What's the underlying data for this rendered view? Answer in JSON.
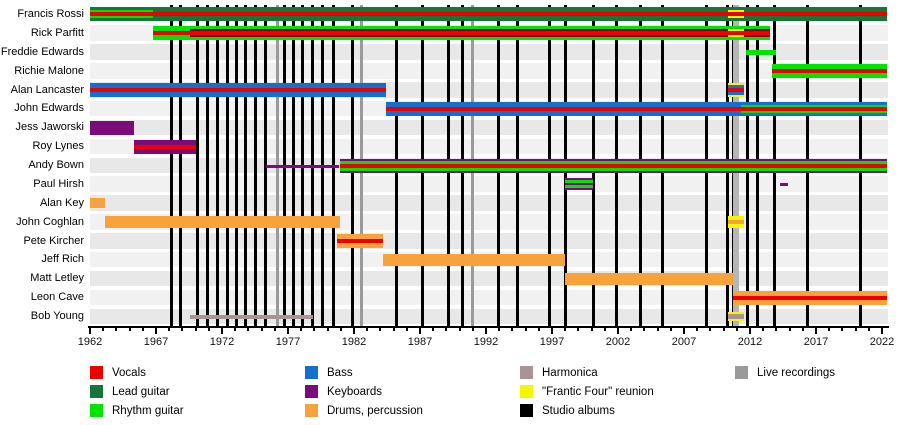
{
  "chart_data": {
    "type": "timeline",
    "description": "Band members timeline with roles by colour, studio albums and live recordings as vertical lines",
    "axis": {
      "start_year": 1962,
      "end_year": 2022.4,
      "tick_step": 1,
      "major_tick_step": 5,
      "tick_labels": [
        "1962",
        "1967",
        "1972",
        "1977",
        "1982",
        "1987",
        "1992",
        "1997",
        "2002",
        "2007",
        "2012",
        "2017",
        "2022"
      ],
      "grid": false
    },
    "legend": [
      {
        "id": "vocals",
        "label": "Vocals",
        "color": "red",
        "col": 0,
        "row": 0
      },
      {
        "id": "lead-guitar",
        "label": "Lead guitar",
        "color": "leadGuitar",
        "col": 0,
        "row": 1
      },
      {
        "id": "rhythm-guitar",
        "label": "Rhythm guitar",
        "color": "rhythmGuitar",
        "col": 0,
        "row": 2
      },
      {
        "id": "bass",
        "label": "Bass",
        "color": "bass",
        "col": 1,
        "row": 0
      },
      {
        "id": "keyboards",
        "label": "Keyboards",
        "color": "keyboards",
        "col": 1,
        "row": 1
      },
      {
        "id": "drums",
        "label": "Drums, percussion",
        "color": "drums",
        "col": 1,
        "row": 2
      },
      {
        "id": "harmonica",
        "label": "Harmonica",
        "color": "harmonica",
        "col": 2,
        "row": 0
      },
      {
        "id": "frantic-four",
        "label": "\"Frantic Four\" reunion",
        "color": "frantic",
        "col": 2,
        "row": 1
      },
      {
        "id": "studio-albums",
        "label": "Studio albums",
        "color": "studio",
        "col": 2,
        "row": 2
      },
      {
        "id": "live-recordings",
        "label": "Live recordings",
        "color": "live",
        "col": 3,
        "row": 0
      }
    ],
    "members": [
      {
        "name": "Francis Rossi",
        "bars": [
          {
            "s": 1962.0,
            "e": 1966.8,
            "st": [
              [
                "leadGuitar",
                3
              ],
              [
                "rhythmGuitar",
                2
              ],
              [
                "red",
                4
              ],
              [
                "rhythmGuitar",
                2
              ],
              [
                "leadGuitar",
                3
              ]
            ]
          },
          {
            "s": 1966.8,
            "e": 2022.35,
            "st": [
              [
                "leadGuitar",
                5
              ],
              [
                "red",
                4
              ],
              [
                "leadGuitar",
                5
              ]
            ]
          },
          {
            "s": 2010.35,
            "e": 2011.55,
            "st": [
              [
                "none",
                3
              ],
              [
                "frantic",
                2
              ],
              [
                "none",
                4
              ],
              [
                "frantic",
                2
              ],
              [
                "none",
                3
              ]
            ]
          }
        ]
      },
      {
        "name": "Rick Parfitt",
        "bars": [
          {
            "s": 1966.8,
            "e": 2013.55,
            "st": [
              [
                "rhythmGuitar",
                5
              ],
              [
                "red",
                4
              ],
              [
                "rhythmGuitar",
                5
              ]
            ]
          },
          {
            "s": 1969.6,
            "e": 2013.55,
            "st": [
              [
                "none",
                3
              ],
              [
                "darkRed",
                2
              ],
              [
                "none",
                4
              ],
              [
                "darkRed",
                2
              ],
              [
                "none",
                3
              ]
            ]
          },
          {
            "s": 2010.35,
            "e": 2011.55,
            "st": [
              [
                "none",
                3
              ],
              [
                "frantic",
                2
              ],
              [
                "none",
                4
              ],
              [
                "frantic",
                2
              ],
              [
                "none",
                3
              ]
            ]
          }
        ]
      },
      {
        "name": "Freddie Edwards",
        "bars": [
          {
            "s": 2011.7,
            "e": 2014.0,
            "st": [
              [
                "none",
                5
              ],
              [
                "rhythmGuitar",
                5
              ],
              [
                "none",
                4
              ]
            ]
          }
        ]
      },
      {
        "name": "Richie Malone",
        "bars": [
          {
            "s": 2013.7,
            "e": 2022.35,
            "st": [
              [
                "rhythmGuitar",
                5
              ],
              [
                "red",
                4
              ],
              [
                "rhythmGuitar",
                5
              ]
            ]
          }
        ]
      },
      {
        "name": "Alan Lancaster",
        "bars": [
          {
            "s": 1962.0,
            "e": 1984.4,
            "st": [
              [
                "bass",
                5
              ],
              [
                "red",
                4
              ],
              [
                "bass",
                5
              ]
            ]
          },
          {
            "s": 2010.35,
            "e": 2011.55,
            "st": [
              [
                "frantic",
                2
              ],
              [
                "bass",
                3
              ],
              [
                "red",
                4
              ],
              [
                "bass",
                3
              ],
              [
                "frantic",
                2
              ]
            ]
          }
        ]
      },
      {
        "name": "John Edwards",
        "bars": [
          {
            "s": 1984.4,
            "e": 2022.35,
            "st": [
              [
                "bass",
                5
              ],
              [
                "red",
                4
              ],
              [
                "bass",
                5
              ]
            ]
          },
          {
            "s": 2011.3,
            "e": 2022.35,
            "st": [
              [
                "none",
                3
              ],
              [
                "rhythmGuitar",
                2
              ],
              [
                "none",
                4
              ],
              [
                "rhythmGuitar",
                2
              ],
              [
                "none",
                3
              ]
            ]
          }
        ]
      },
      {
        "name": "Jess Jaworski",
        "bars": [
          {
            "s": 1962.0,
            "e": 1965.3,
            "st": [
              [
                "keyboards",
                14
              ]
            ]
          }
        ]
      },
      {
        "name": "Roy Lynes",
        "bars": [
          {
            "s": 1965.3,
            "e": 1970.0,
            "st": [
              [
                "keyboards",
                5
              ],
              [
                "red",
                4
              ],
              [
                "keyboards",
                5
              ]
            ]
          }
        ]
      },
      {
        "name": "Andy Bown",
        "bars": [
          {
            "s": 1975.3,
            "e": 1980.9,
            "st": [
              [
                "none",
                6
              ],
              [
                "keyboards",
                3
              ],
              [
                "none",
                5
              ]
            ]
          },
          {
            "s": 1980.9,
            "e": 2022.35,
            "st": [
              [
                "keyboards",
                2
              ],
              [
                "rhythmGuitar",
                3
              ],
              [
                "red",
                4
              ],
              [
                "rhythmGuitar",
                3
              ],
              [
                "keyboards",
                2
              ]
            ]
          }
        ]
      },
      {
        "name": "Paul Hirsh",
        "bars": [
          {
            "s": 1998.0,
            "e": 2000.1,
            "st": [
              [
                "none",
                1
              ],
              [
                "keyboards",
                2
              ],
              [
                "rhythmGuitar",
                3
              ],
              [
                "keyboards",
                2
              ],
              [
                "rhythmGuitar",
                3
              ],
              [
                "keyboards",
                2
              ],
              [
                "none",
                1
              ]
            ]
          },
          {
            "s": 2014.3,
            "e": 2014.9,
            "st": [
              [
                "none",
                6
              ],
              [
                "keyboards",
                3
              ],
              [
                "none",
                5
              ]
            ]
          }
        ]
      },
      {
        "name": "Alan Key",
        "bars": [
          {
            "s": 1962.0,
            "e": 1963.1,
            "st": [
              [
                "none",
                2
              ],
              [
                "drums",
                10
              ],
              [
                "none",
                2
              ]
            ]
          }
        ]
      },
      {
        "name": "John Coghlan",
        "bars": [
          {
            "s": 1963.1,
            "e": 1980.9,
            "st": [
              [
                "none",
                1
              ],
              [
                "drums",
                12
              ],
              [
                "none",
                1
              ]
            ]
          },
          {
            "s": 2010.35,
            "e": 2011.55,
            "st": [
              [
                "none",
                1
              ],
              [
                "frantic",
                4
              ],
              [
                "drums",
                4
              ],
              [
                "frantic",
                4
              ],
              [
                "none",
                1
              ]
            ]
          }
        ]
      },
      {
        "name": "Pete Kircher",
        "bars": [
          {
            "s": 1980.7,
            "e": 1984.2,
            "st": [
              [
                "drums",
                5
              ],
              [
                "red",
                4
              ],
              [
                "drums",
                5
              ]
            ]
          }
        ]
      },
      {
        "name": "Jeff Rich",
        "bars": [
          {
            "s": 1984.2,
            "e": 1998.0,
            "st": [
              [
                "none",
                1
              ],
              [
                "drums",
                12
              ],
              [
                "none",
                1
              ]
            ]
          }
        ]
      },
      {
        "name": "Matt Letley",
        "bars": [
          {
            "s": 1998.0,
            "e": 2010.7,
            "st": [
              [
                "none",
                1
              ],
              [
                "drums",
                12
              ],
              [
                "none",
                1
              ]
            ]
          }
        ]
      },
      {
        "name": "Leon Cave",
        "bars": [
          {
            "s": 2010.7,
            "e": 2022.35,
            "st": [
              [
                "drums",
                5
              ],
              [
                "red",
                4
              ],
              [
                "drums",
                5
              ]
            ]
          }
        ]
      },
      {
        "name": "Bob Young",
        "bars": [
          {
            "s": 1969.6,
            "e": 1978.9,
            "st": [
              [
                "none",
                5
              ],
              [
                "harmonica",
                4
              ],
              [
                "none",
                5
              ]
            ]
          },
          {
            "s": 2010.35,
            "e": 2011.55,
            "st": [
              [
                "none",
                2
              ],
              [
                "frantic",
                2
              ],
              [
                "harmonica",
                5
              ],
              [
                "frantic",
                2
              ],
              [
                "none",
                3
              ]
            ]
          }
        ]
      }
    ],
    "events": {
      "studio_albums": [
        1968.14,
        1968.89,
        1970.11,
        1970.86,
        1971.62,
        1972.38,
        1973.06,
        1973.74,
        1974.5,
        1975.26,
        1976.7,
        1977.38,
        1978.06,
        1978.82,
        1979.58,
        1980.41,
        1981.85,
        1985.18,
        1987.15,
        1989.12,
        1990.18,
        1992.91,
        1994.42,
        1996.82,
        1998.0,
        2000.11,
        2001.92,
        2003.67,
        2005.33,
        2008.67,
        2010.26,
        2010.71,
        2011.77,
        2012.53,
        2013.89,
        2016.39,
        2020.33
      ],
      "live_recordings": [
        1976.21,
        1982.58,
        1990.94
      ],
      "live_recordings_wide": [
        2010.9
      ]
    }
  },
  "palette": {
    "red": "#ee0000",
    "leadGuitar": "#17753a",
    "rhythmGuitar": "#00e400",
    "bass": "#1570cd",
    "keyboards": "#7d0a7d",
    "drums": "#f7a23b",
    "harmonica": "#a89494",
    "frantic": "#f6f600",
    "studio": "#000000",
    "live": "#9a9a9a",
    "liveWide": "#b6b6b6",
    "darkRed": "#8b0000",
    "bandEven": "#e8e8e8",
    "bandOdd": "#f1f1f1"
  }
}
